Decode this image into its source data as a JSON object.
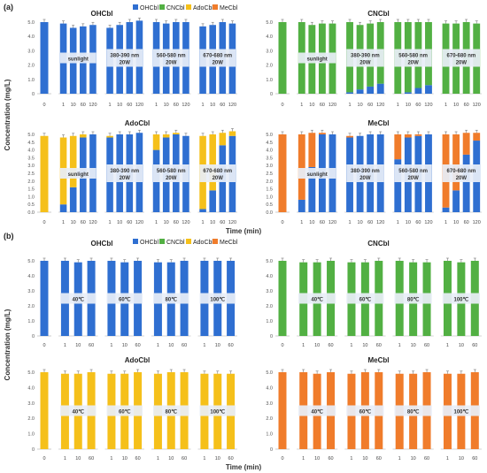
{
  "figure": {
    "panel_a_label": "(a)",
    "panel_b_label": "(b)",
    "ylabel": "Concentration (mg/L)",
    "xlabel": "Time (min)"
  },
  "legend": [
    {
      "name": "OHCbl",
      "color": "#2f6fd1"
    },
    {
      "name": "CNCbl",
      "color": "#52b043"
    },
    {
      "name": "AdoCbl",
      "color": "#f5c01a"
    },
    {
      "name": "MeCbl",
      "color": "#f07c2b"
    }
  ],
  "chart_data": [
    {
      "type": "bar",
      "stacked": true,
      "title": "OHCbl",
      "panel": "a",
      "yticks": [
        "0",
        "1.0",
        "2.0",
        "3.0",
        "4.0",
        "5.0"
      ],
      "ylim": [
        0,
        5.5
      ],
      "groups": [
        {
          "label": "",
          "ticks": [
            "0"
          ],
          "series": {
            "OHCbl": [
              5.0
            ]
          }
        },
        {
          "label": "sunlight",
          "ticks": [
            "1",
            "10",
            "60",
            "120"
          ],
          "series": {
            "OHCbl": [
              4.9,
              4.6,
              4.7,
              4.8
            ]
          }
        },
        {
          "label": "380-390 nm\n20W",
          "ticks": [
            "1",
            "10",
            "60",
            "120"
          ],
          "series": {
            "OHCbl": [
              4.6,
              4.8,
              5.0,
              5.1
            ]
          }
        },
        {
          "label": "560-580 nm\n20W",
          "ticks": [
            "1",
            "10",
            "60",
            "120"
          ],
          "series": {
            "OHCbl": [
              5.0,
              4.9,
              5.0,
              5.0
            ]
          }
        },
        {
          "label": "670-680 nm\n20W",
          "ticks": [
            "1",
            "10",
            "60",
            "120"
          ],
          "series": {
            "OHCbl": [
              4.7,
              4.8,
              5.0,
              4.9
            ]
          }
        }
      ]
    },
    {
      "type": "bar",
      "stacked": true,
      "title": "CNCbl",
      "panel": "a",
      "yticks": [
        "0",
        "1.0",
        "2.0",
        "3.0",
        "4.0",
        "5.0"
      ],
      "ylim": [
        0,
        5.5
      ],
      "groups": [
        {
          "label": "",
          "ticks": [
            "0"
          ],
          "series": {
            "CNCbl": [
              5.0
            ]
          }
        },
        {
          "label": "sunlight",
          "ticks": [
            "1",
            "10",
            "60",
            "120"
          ],
          "series": {
            "CNCbl": [
              5.0,
              4.8,
              4.9,
              4.9
            ]
          }
        },
        {
          "label": "380-390 nm\n20W",
          "ticks": [
            "1",
            "10",
            "60",
            "120"
          ],
          "series": {
            "OHCbl": [
              0.1,
              0.3,
              0.5,
              0.7
            ],
            "CNCbl": [
              4.9,
              4.5,
              4.4,
              4.3
            ]
          }
        },
        {
          "label": "560-580 nm\n20W",
          "ticks": [
            "1",
            "10",
            "60",
            "120"
          ],
          "series": {
            "OHCbl": [
              0.0,
              0.1,
              0.4,
              0.6
            ],
            "CNCbl": [
              5.0,
              4.9,
              4.6,
              4.4
            ]
          }
        },
        {
          "label": "670-680 nm\n20W",
          "ticks": [
            "1",
            "10",
            "60",
            "120"
          ],
          "series": {
            "CNCbl": [
              4.9,
              4.9,
              5.0,
              4.9
            ]
          }
        }
      ]
    },
    {
      "type": "bar",
      "stacked": true,
      "title": "AdoCbl",
      "panel": "a",
      "yticks": [
        "0.0",
        "0.5",
        "1.0",
        "1.5",
        "2.0",
        "2.5",
        "3.0",
        "3.5",
        "4.0",
        "4.5",
        "5.0"
      ],
      "ylim": [
        0,
        5.3
      ],
      "groups": [
        {
          "label": "",
          "ticks": [
            "0"
          ],
          "series": {
            "AdoCbl": [
              4.9
            ]
          }
        },
        {
          "label": "sunlight",
          "ticks": [
            "1",
            "10",
            "60",
            "120"
          ],
          "series": {
            "OHCbl": [
              0.5,
              1.6,
              4.8,
              5.0
            ],
            "AdoCbl": [
              4.3,
              3.3,
              0.2,
              0.0
            ]
          }
        },
        {
          "label": "380-390 nm\n20W",
          "ticks": [
            "1",
            "10",
            "60",
            "120"
          ],
          "series": {
            "OHCbl": [
              4.8,
              5.0,
              5.0,
              5.1
            ],
            "AdoCbl": [
              0.1,
              0.0,
              0.0,
              0.0
            ]
          }
        },
        {
          "label": "560-580 nm\n20W",
          "ticks": [
            "1",
            "10",
            "60",
            "120"
          ],
          "series": {
            "OHCbl": [
              4.0,
              4.8,
              5.0,
              4.9
            ],
            "AdoCbl": [
              1.0,
              0.2,
              0.1,
              0.0
            ]
          }
        },
        {
          "label": "670-680 nm\n20W",
          "ticks": [
            "1",
            "10",
            "60",
            "120"
          ],
          "series": {
            "OHCbl": [
              0.2,
              1.4,
              4.3,
              4.9
            ],
            "AdoCbl": [
              4.7,
              3.6,
              0.8,
              0.3
            ]
          }
        }
      ]
    },
    {
      "type": "bar",
      "stacked": true,
      "title": "MeCbl",
      "panel": "a",
      "yticks": [
        "0.0",
        "0.5",
        "1.0",
        "1.5",
        "2.0",
        "2.5",
        "3.0",
        "3.5",
        "4.0",
        "4.5",
        "5.0"
      ],
      "ylim": [
        0,
        5.3
      ],
      "groups": [
        {
          "label": "",
          "ticks": [
            "0"
          ],
          "series": {
            "MeCbl": [
              5.0
            ]
          }
        },
        {
          "label": "sunlight",
          "ticks": [
            "1",
            "10",
            "60",
            "120"
          ],
          "series": {
            "OHCbl": [
              0.8,
              2.9,
              5.0,
              5.0
            ],
            "MeCbl": [
              4.2,
              2.2,
              0.1,
              0.0
            ]
          }
        },
        {
          "label": "380-390 nm\n20W",
          "ticks": [
            "1",
            "10",
            "60",
            "120"
          ],
          "series": {
            "OHCbl": [
              4.8,
              4.9,
              5.0,
              5.0
            ],
            "MeCbl": [
              0.1,
              0.0,
              0.0,
              0.0
            ]
          }
        },
        {
          "label": "560-580 nm\n20W",
          "ticks": [
            "1",
            "10",
            "60",
            "120"
          ],
          "series": {
            "OHCbl": [
              3.4,
              4.8,
              4.9,
              5.0
            ],
            "MeCbl": [
              1.6,
              0.2,
              0.1,
              0.0
            ]
          }
        },
        {
          "label": "670-680 nm\n20W",
          "ticks": [
            "1",
            "10",
            "60",
            "120"
          ],
          "series": {
            "OHCbl": [
              0.3,
              1.4,
              3.7,
              4.6
            ],
            "MeCbl": [
              4.7,
              3.6,
              1.4,
              0.5
            ]
          }
        }
      ]
    },
    {
      "type": "bar",
      "stacked": false,
      "title": "OHCbl",
      "panel": "b",
      "yticks": [
        "0",
        "1.0",
        "2.0",
        "3.0",
        "4.0",
        "5.0"
      ],
      "ylim": [
        0,
        5.5
      ],
      "groups": [
        {
          "label": "",
          "ticks": [
            "0"
          ],
          "series": {
            "OHCbl": [
              5.0
            ]
          }
        },
        {
          "label": "40℃",
          "ticks": [
            "1",
            "10",
            "60"
          ],
          "series": {
            "OHCbl": [
              5.0,
              4.9,
              5.0
            ]
          }
        },
        {
          "label": "60℃",
          "ticks": [
            "1",
            "10",
            "60"
          ],
          "series": {
            "OHCbl": [
              5.0,
              4.9,
              5.0
            ]
          }
        },
        {
          "label": "80℃",
          "ticks": [
            "1",
            "10",
            "60"
          ],
          "series": {
            "OHCbl": [
              4.9,
              4.9,
              5.0
            ]
          }
        },
        {
          "label": "100℃",
          "ticks": [
            "1",
            "10",
            "60"
          ],
          "series": {
            "OHCbl": [
              5.0,
              5.0,
              5.0
            ]
          }
        }
      ]
    },
    {
      "type": "bar",
      "stacked": false,
      "title": "CNCbl",
      "panel": "b",
      "yticks": [
        "0",
        "1.0",
        "2.0",
        "3.0",
        "4.0",
        "5.0"
      ],
      "ylim": [
        0,
        5.5
      ],
      "groups": [
        {
          "label": "",
          "ticks": [
            "0"
          ],
          "series": {
            "CNCbl": [
              5.0
            ]
          }
        },
        {
          "label": "40℃",
          "ticks": [
            "1",
            "10",
            "60"
          ],
          "series": {
            "CNCbl": [
              4.9,
              4.9,
              5.0
            ]
          }
        },
        {
          "label": "60℃",
          "ticks": [
            "1",
            "10",
            "60"
          ],
          "series": {
            "CNCbl": [
              4.9,
              4.9,
              5.0
            ]
          }
        },
        {
          "label": "80℃",
          "ticks": [
            "1",
            "10",
            "60"
          ],
          "series": {
            "CNCbl": [
              5.0,
              4.9,
              4.9
            ]
          }
        },
        {
          "label": "100℃",
          "ticks": [
            "1",
            "10",
            "60"
          ],
          "series": {
            "CNCbl": [
              5.0,
              4.9,
              5.0
            ]
          }
        }
      ]
    },
    {
      "type": "bar",
      "stacked": false,
      "title": "AdoCbl",
      "panel": "b",
      "yticks": [
        "0",
        "1.0",
        "2.0",
        "3.0",
        "4.0",
        "5.0"
      ],
      "ylim": [
        0,
        5.5
      ],
      "groups": [
        {
          "label": "",
          "ticks": [
            "0"
          ],
          "series": {
            "AdoCbl": [
              5.0
            ]
          }
        },
        {
          "label": "40℃",
          "ticks": [
            "1",
            "10",
            "60"
          ],
          "series": {
            "AdoCbl": [
              4.9,
              4.9,
              5.0
            ]
          }
        },
        {
          "label": "60℃",
          "ticks": [
            "1",
            "10",
            "60"
          ],
          "series": {
            "AdoCbl": [
              4.9,
              4.9,
              5.0
            ]
          }
        },
        {
          "label": "80℃",
          "ticks": [
            "1",
            "10",
            "60"
          ],
          "series": {
            "AdoCbl": [
              4.9,
              5.0,
              5.0
            ]
          }
        },
        {
          "label": "100℃",
          "ticks": [
            "1",
            "10",
            "60"
          ],
          "series": {
            "AdoCbl": [
              4.9,
              4.9,
              4.9
            ]
          }
        }
      ]
    },
    {
      "type": "bar",
      "stacked": false,
      "title": "MeCbl",
      "panel": "b",
      "yticks": [
        "0",
        "1.0",
        "2.0",
        "3.0",
        "4.0",
        "5.0"
      ],
      "ylim": [
        0,
        5.5
      ],
      "groups": [
        {
          "label": "",
          "ticks": [
            "0"
          ],
          "series": {
            "MeCbl": [
              5.0
            ]
          }
        },
        {
          "label": "40℃",
          "ticks": [
            "1",
            "10",
            "60"
          ],
          "series": {
            "MeCbl": [
              5.0,
              4.9,
              5.0
            ]
          }
        },
        {
          "label": "60℃",
          "ticks": [
            "1",
            "10",
            "60"
          ],
          "series": {
            "MeCbl": [
              4.9,
              5.0,
              5.0
            ]
          }
        },
        {
          "label": "80℃",
          "ticks": [
            "1",
            "10",
            "60"
          ],
          "series": {
            "MeCbl": [
              4.9,
              4.9,
              5.0
            ]
          }
        },
        {
          "label": "100℃",
          "ticks": [
            "1",
            "10",
            "60"
          ],
          "series": {
            "MeCbl": [
              4.9,
              4.9,
              5.0
            ]
          }
        }
      ]
    }
  ]
}
